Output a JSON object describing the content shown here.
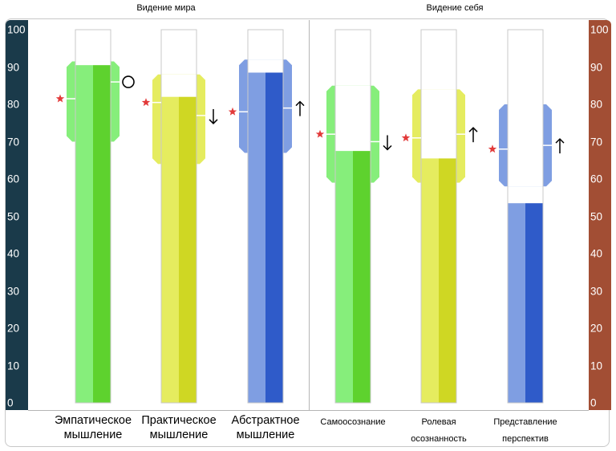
{
  "groups": [
    {
      "title": "Видение мира"
    },
    {
      "title": "Видение себя"
    }
  ],
  "categories": [
    {
      "line1": "Эмпатическое",
      "line2": "мышление"
    },
    {
      "line1": "Практическое",
      "line2": "мышление"
    },
    {
      "line1": "Абстрактное",
      "line2": "мышление"
    },
    {
      "line1": "Самоосознание",
      "line2": ""
    },
    {
      "line1": "Ролевая",
      "line2": "осознанность"
    },
    {
      "line1": "Представление",
      "line2": "перспектив"
    }
  ],
  "chart_data": {
    "type": "bar",
    "ylim": [
      0,
      100
    ],
    "y_ticks": [
      0,
      10,
      20,
      30,
      40,
      50,
      60,
      70,
      80,
      90,
      100
    ],
    "categories": [
      "Эмпатическое мышление",
      "Практическое мышление",
      "Абстрактное мышление",
      "Самоосознание",
      "Ролевая осознанность",
      "Представление перспектив"
    ],
    "values": [
      90.5,
      82,
      88.5,
      67.5,
      65.5,
      53.5
    ],
    "range_low": [
      70,
      64,
      67,
      59,
      59,
      58
    ],
    "range_high": [
      91.5,
      88,
      92,
      85,
      84,
      80
    ],
    "marker_level": [
      86,
      77,
      79,
      70,
      72,
      69
    ],
    "star_value": [
      81.5,
      80.5,
      78,
      72,
      71,
      68
    ],
    "trend_symbols": [
      "○",
      "↓",
      "↑",
      "↓",
      "↑",
      "↑"
    ],
    "colors": {
      "green_light": "#86ee7b",
      "green_dark": "#5ed22e",
      "yellow_light": "#e5ec5f",
      "yellow_dark": "#cfd723",
      "blue_light": "#7f9ee2",
      "blue_dark": "#2f5bc9",
      "star": "#e23a3a",
      "scale_left": "#1a3a4a",
      "scale_right": "#a24e34"
    }
  }
}
